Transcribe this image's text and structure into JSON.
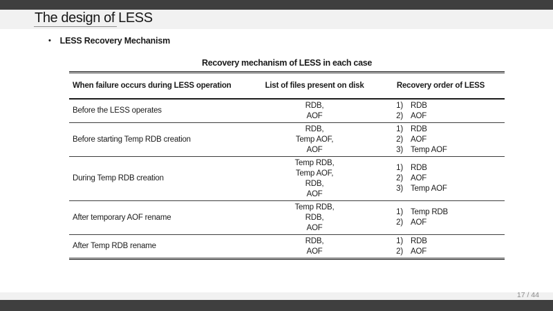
{
  "slide": {
    "title": "The design of LESS",
    "bullet_marker": "•",
    "bullet_text": "LESS Recovery Mechanism",
    "page_number": "17 / 44"
  },
  "table": {
    "caption": "Recovery mechanism of LESS in each case",
    "columns": [
      "When failure occurs during LESS operation",
      "List of files present on disk",
      "Recovery order of LESS"
    ],
    "rows": [
      {
        "failure": "Before the LESS operates",
        "files": "RDB,\nAOF",
        "recovery_nums": "1)\n2)",
        "recovery_files": "RDB\nAOF"
      },
      {
        "failure": "Before starting Temp RDB creation",
        "files": "RDB,\nTemp AOF,\nAOF",
        "recovery_nums": "1)\n2)\n3)",
        "recovery_files": "RDB\nAOF\nTemp AOF"
      },
      {
        "failure": "During Temp RDB creation",
        "files": "Temp RDB,\nTemp AOF,\nRDB,\nAOF",
        "recovery_nums": "1)\n2)\n3)",
        "recovery_files": "RDB\nAOF\nTemp AOF"
      },
      {
        "failure": "After temporary AOF rename",
        "files": "Temp RDB,\nRDB,\nAOF",
        "recovery_nums": "1)\n2)",
        "recovery_files": "Temp RDB\nAOF"
      },
      {
        "failure": "After Temp RDB rename",
        "files": "RDB,\nAOF",
        "recovery_nums": "1)\n2)",
        "recovery_files": "RDB\nAOF"
      }
    ]
  },
  "colors": {
    "bar": "#3f3f3f",
    "strip": "#f1f1f1",
    "text": "#1a1a1a",
    "page_number_gray": "#8a8a8a",
    "rule_dark": "#1a1a1a",
    "rule_mid": "#3c3c3c"
  }
}
